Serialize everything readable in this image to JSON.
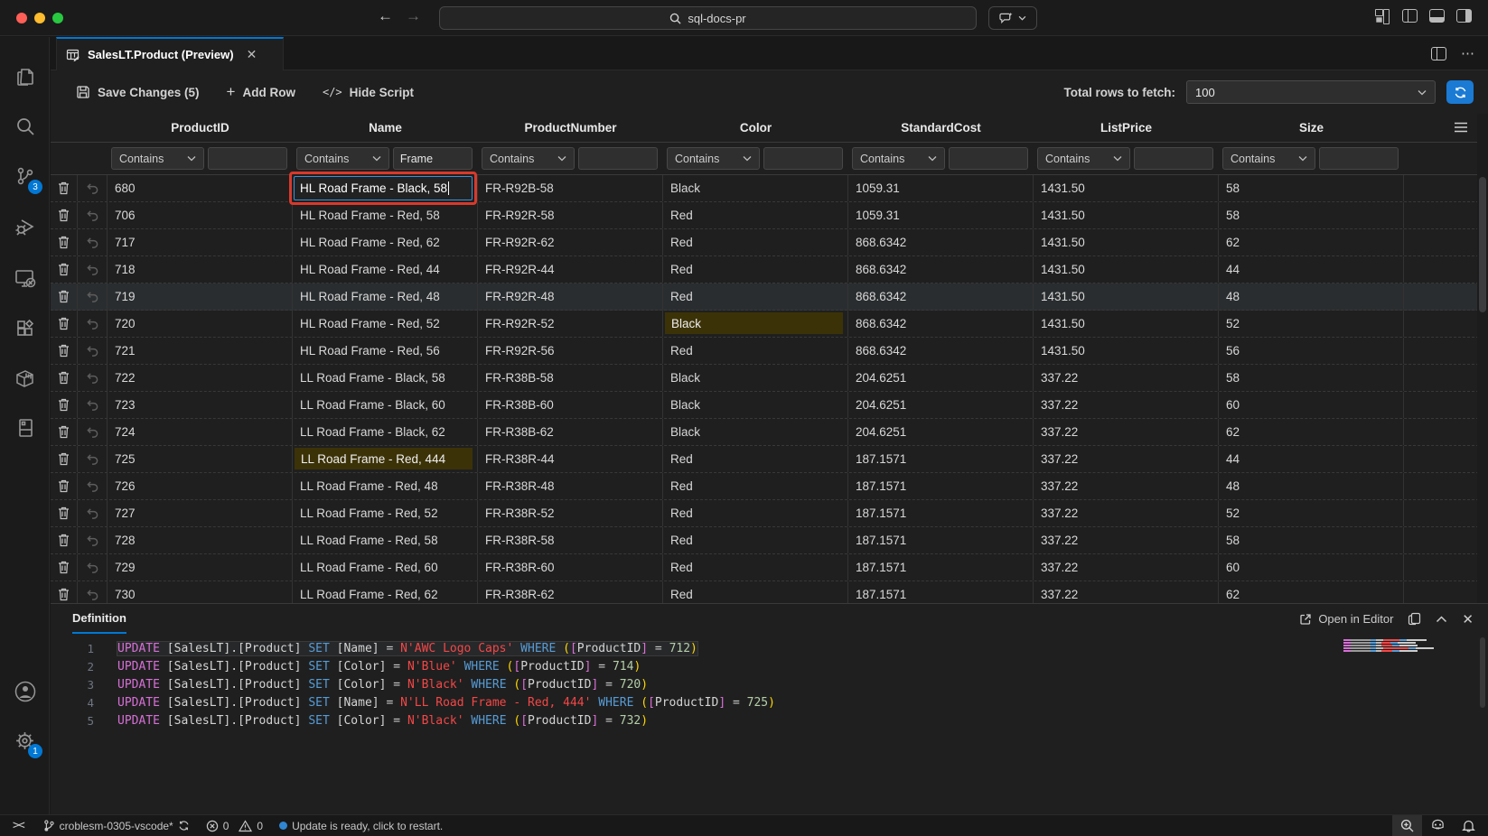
{
  "window": {
    "search_value": "sql-docs-pr",
    "traffic_lights": [
      "close",
      "minimize",
      "zoom"
    ]
  },
  "tab": {
    "title": "SalesLT.Product (Preview)"
  },
  "toolbar": {
    "save_label": "Save Changes (5)",
    "add_row_label": "Add Row",
    "hide_script_label": "Hide Script",
    "hide_script_glyph": "</>",
    "total_rows_label": "Total rows to fetch:",
    "total_rows_value": "100"
  },
  "grid": {
    "columns": [
      "ProductID",
      "Name",
      "ProductNumber",
      "Color",
      "StandardCost",
      "ListPrice",
      "Size"
    ],
    "filter_operator": "Contains",
    "filter_values": [
      "",
      "Frame",
      "",
      "",
      "",
      "",
      ""
    ],
    "rows": [
      {
        "values": [
          "680",
          "HL Road Frame - Black, 58",
          "FR-R92B-58",
          "Black",
          "1059.31",
          "1431.50",
          "58"
        ],
        "editing": 1
      },
      {
        "values": [
          "706",
          "HL Road Frame - Red, 58",
          "FR-R92R-58",
          "Red",
          "1059.31",
          "1431.50",
          "58"
        ]
      },
      {
        "values": [
          "717",
          "HL Road Frame - Red, 62",
          "FR-R92R-62",
          "Red",
          "868.6342",
          "1431.50",
          "62"
        ]
      },
      {
        "values": [
          "718",
          "HL Road Frame - Red, 44",
          "FR-R92R-44",
          "Red",
          "868.6342",
          "1431.50",
          "44"
        ]
      },
      {
        "values": [
          "719",
          "HL Road Frame - Red, 48",
          "FR-R92R-48",
          "Red",
          "868.6342",
          "1431.50",
          "48"
        ],
        "selected": true
      },
      {
        "values": [
          "720",
          "HL Road Frame - Red, 52",
          "FR-R92R-52",
          "Black",
          "868.6342",
          "1431.50",
          "52"
        ],
        "dirty": [
          3
        ]
      },
      {
        "values": [
          "721",
          "HL Road Frame - Red, 56",
          "FR-R92R-56",
          "Red",
          "868.6342",
          "1431.50",
          "56"
        ]
      },
      {
        "values": [
          "722",
          "LL Road Frame - Black, 58",
          "FR-R38B-58",
          "Black",
          "204.6251",
          "337.22",
          "58"
        ]
      },
      {
        "values": [
          "723",
          "LL Road Frame - Black, 60",
          "FR-R38B-60",
          "Black",
          "204.6251",
          "337.22",
          "60"
        ]
      },
      {
        "values": [
          "724",
          "LL Road Frame - Black, 62",
          "FR-R38B-62",
          "Black",
          "204.6251",
          "337.22",
          "62"
        ]
      },
      {
        "values": [
          "725",
          "LL Road Frame - Red, 444",
          "FR-R38R-44",
          "Red",
          "187.1571",
          "337.22",
          "44"
        ],
        "dirty": [
          1
        ]
      },
      {
        "values": [
          "726",
          "LL Road Frame - Red, 48",
          "FR-R38R-48",
          "Red",
          "187.1571",
          "337.22",
          "48"
        ]
      },
      {
        "values": [
          "727",
          "LL Road Frame - Red, 52",
          "FR-R38R-52",
          "Red",
          "187.1571",
          "337.22",
          "52"
        ]
      },
      {
        "values": [
          "728",
          "LL Road Frame - Red, 58",
          "FR-R38R-58",
          "Red",
          "187.1571",
          "337.22",
          "58"
        ]
      },
      {
        "values": [
          "729",
          "LL Road Frame - Red, 60",
          "FR-R38R-60",
          "Red",
          "187.1571",
          "337.22",
          "60"
        ]
      },
      {
        "values": [
          "730",
          "LL Road Frame - Red, 62",
          "FR-R38R-62",
          "Red",
          "187.1571",
          "337.22",
          "62"
        ]
      }
    ]
  },
  "definition": {
    "tab_label": "Definition",
    "open_in_editor_label": "Open in Editor",
    "lines": [
      {
        "num": "1",
        "current": true,
        "tokens": [
          [
            "kw1",
            "UPDATE"
          ],
          [
            "ws",
            " "
          ],
          [
            "pl",
            "[SalesLT].[Product]"
          ],
          [
            "ws",
            " "
          ],
          [
            "kw",
            "SET"
          ],
          [
            "ws",
            " "
          ],
          [
            "pl",
            "[Name]"
          ],
          [
            "op",
            " = "
          ],
          [
            "str",
            "N'AWC Logo Caps'"
          ],
          [
            "ws",
            " "
          ],
          [
            "kw",
            "WHERE"
          ],
          [
            "ws",
            " "
          ],
          [
            "b1",
            "("
          ],
          [
            "b2",
            "["
          ],
          [
            "pl",
            "ProductID"
          ],
          [
            "b2",
            "]"
          ],
          [
            "op",
            " = "
          ],
          [
            "num",
            "712"
          ],
          [
            "b1",
            ")"
          ]
        ]
      },
      {
        "num": "2",
        "tokens": [
          [
            "kw1",
            "UPDATE"
          ],
          [
            "ws",
            " "
          ],
          [
            "pl",
            "[SalesLT].[Product]"
          ],
          [
            "ws",
            " "
          ],
          [
            "kw",
            "SET"
          ],
          [
            "ws",
            " "
          ],
          [
            "pl",
            "[Color]"
          ],
          [
            "op",
            " = "
          ],
          [
            "str",
            "N'Blue'"
          ],
          [
            "ws",
            " "
          ],
          [
            "kw",
            "WHERE"
          ],
          [
            "ws",
            " "
          ],
          [
            "b1",
            "("
          ],
          [
            "b2",
            "["
          ],
          [
            "pl",
            "ProductID"
          ],
          [
            "b2",
            "]"
          ],
          [
            "op",
            " = "
          ],
          [
            "num",
            "714"
          ],
          [
            "b1",
            ")"
          ]
        ]
      },
      {
        "num": "3",
        "tokens": [
          [
            "kw1",
            "UPDATE"
          ],
          [
            "ws",
            " "
          ],
          [
            "pl",
            "[SalesLT].[Product]"
          ],
          [
            "ws",
            " "
          ],
          [
            "kw",
            "SET"
          ],
          [
            "ws",
            " "
          ],
          [
            "pl",
            "[Color]"
          ],
          [
            "op",
            " = "
          ],
          [
            "str",
            "N'Black'"
          ],
          [
            "ws",
            " "
          ],
          [
            "kw",
            "WHERE"
          ],
          [
            "ws",
            " "
          ],
          [
            "b1",
            "("
          ],
          [
            "b2",
            "["
          ],
          [
            "pl",
            "ProductID"
          ],
          [
            "b2",
            "]"
          ],
          [
            "op",
            " = "
          ],
          [
            "num",
            "720"
          ],
          [
            "b1",
            ")"
          ]
        ]
      },
      {
        "num": "4",
        "tokens": [
          [
            "kw1",
            "UPDATE"
          ],
          [
            "ws",
            " "
          ],
          [
            "pl",
            "[SalesLT].[Product]"
          ],
          [
            "ws",
            " "
          ],
          [
            "kw",
            "SET"
          ],
          [
            "ws",
            " "
          ],
          [
            "pl",
            "[Name]"
          ],
          [
            "op",
            " = "
          ],
          [
            "str",
            "N'LL Road Frame - Red, 444'"
          ],
          [
            "ws",
            " "
          ],
          [
            "kw",
            "WHERE"
          ],
          [
            "ws",
            " "
          ],
          [
            "b1",
            "("
          ],
          [
            "b2",
            "["
          ],
          [
            "pl",
            "ProductID"
          ],
          [
            "b2",
            "]"
          ],
          [
            "op",
            " = "
          ],
          [
            "num",
            "725"
          ],
          [
            "b1",
            ")"
          ]
        ]
      },
      {
        "num": "5",
        "tokens": [
          [
            "kw1",
            "UPDATE"
          ],
          [
            "ws",
            " "
          ],
          [
            "pl",
            "[SalesLT].[Product]"
          ],
          [
            "ws",
            " "
          ],
          [
            "kw",
            "SET"
          ],
          [
            "ws",
            " "
          ],
          [
            "pl",
            "[Color]"
          ],
          [
            "op",
            " = "
          ],
          [
            "str",
            "N'Black'"
          ],
          [
            "ws",
            " "
          ],
          [
            "kw",
            "WHERE"
          ],
          [
            "ws",
            " "
          ],
          [
            "b1",
            "("
          ],
          [
            "b2",
            "["
          ],
          [
            "pl",
            "ProductID"
          ],
          [
            "b2",
            "]"
          ],
          [
            "op",
            " = "
          ],
          [
            "num",
            "732"
          ],
          [
            "b1",
            ")"
          ]
        ]
      }
    ]
  },
  "statusbar": {
    "branch_label": "croblesm-0305-vscode*",
    "error_count": "0",
    "warning_count": "0",
    "update_message": "Update is ready, click to restart."
  },
  "activitybar": {
    "scm_badge": "3",
    "settings_badge": "1"
  },
  "colors": {
    "accent": "#0078d4",
    "edit_outline_red": "#d8392c",
    "edit_focus_blue": "#3f8fd8",
    "dirty_cell_bg": "#3c3208",
    "refresh_button_blue": "#1a7ad4",
    "sql_keyword_dml": "#d670d6",
    "sql_keyword": "#569cd6",
    "sql_string": "#f44747",
    "sql_number": "#b5cea8",
    "bracket_level1": "#ffd700",
    "bracket_level2": "#da70d6"
  }
}
